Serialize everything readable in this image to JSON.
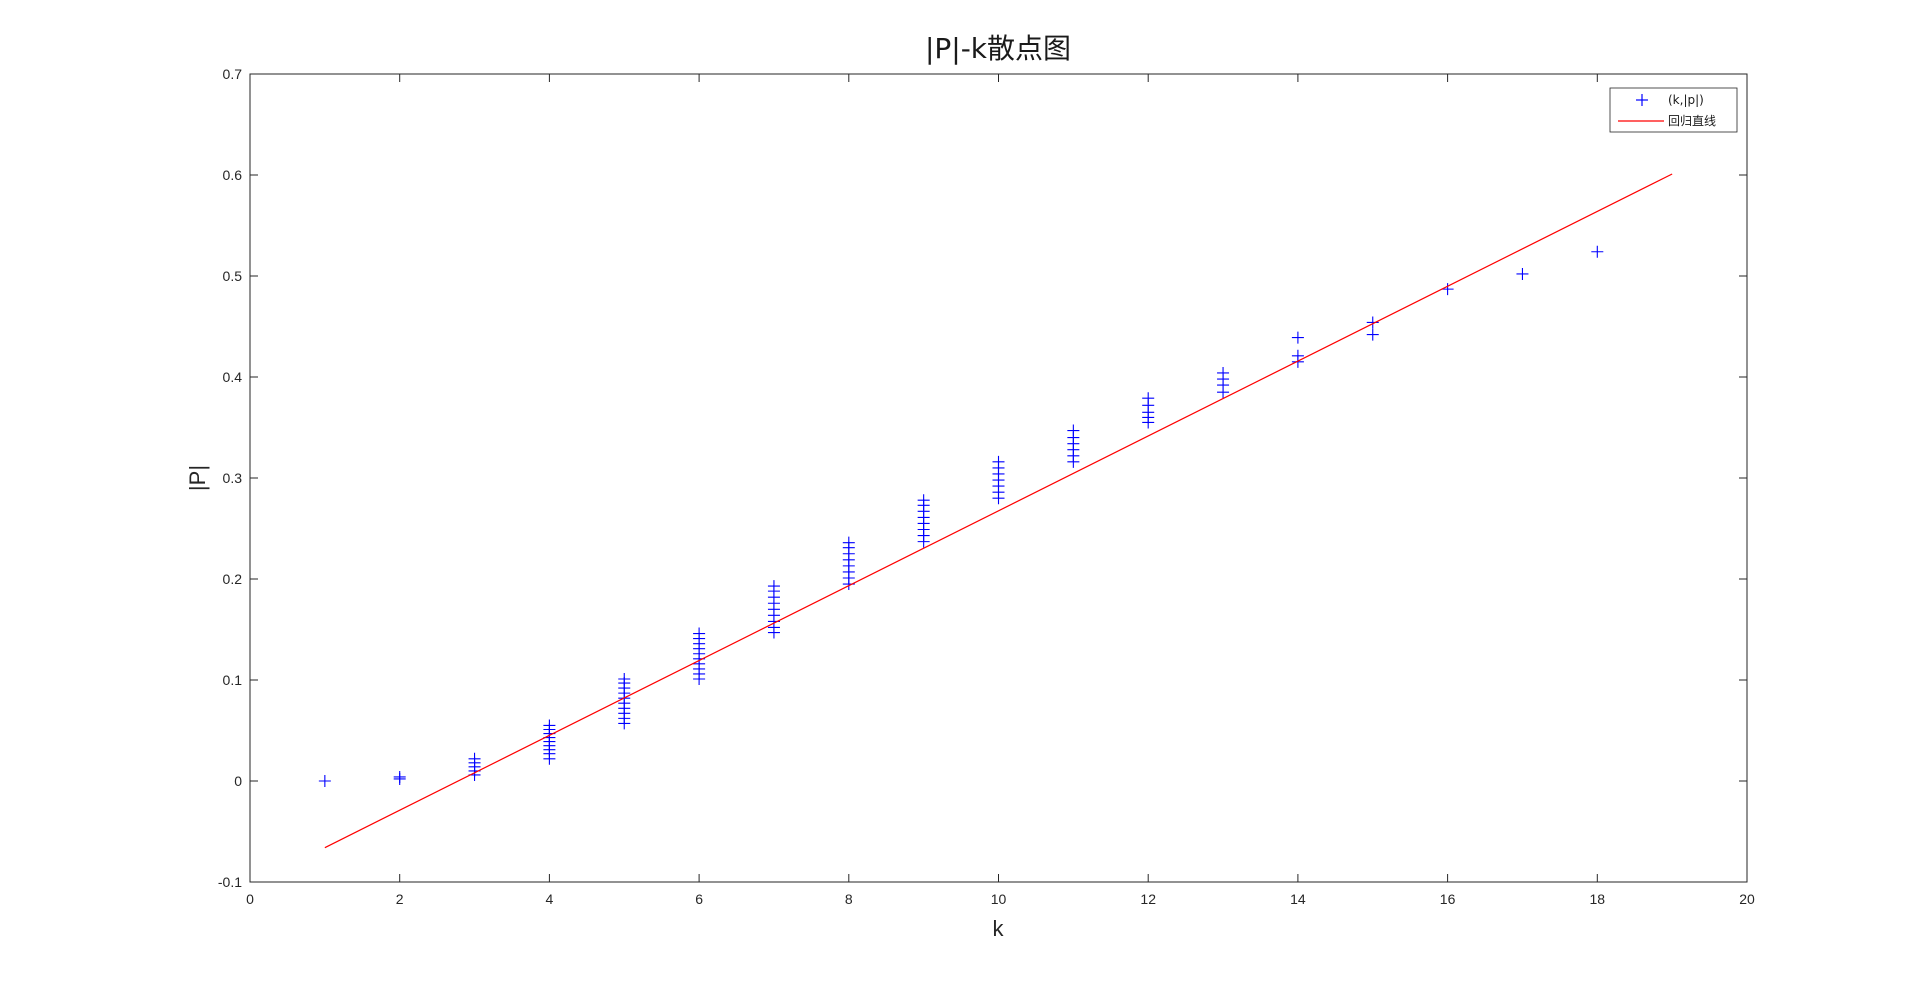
{
  "chart_data": {
    "type": "scatter",
    "title": "|P|-k散点图",
    "xlabel": "k",
    "ylabel": "|P|",
    "xlim": [
      0,
      20
    ],
    "ylim": [
      -0.1,
      0.7
    ],
    "xticks": [
      "0",
      "2",
      "4",
      "6",
      "8",
      "10",
      "12",
      "14",
      "16",
      "18",
      "20"
    ],
    "yticks": [
      "-0.1",
      "0",
      "0.1",
      "0.2",
      "0.3",
      "0.4",
      "0.5",
      "0.6",
      "0.7"
    ],
    "grid": false,
    "legend_position": "top-right",
    "series": [
      {
        "name": "(k,|p|)",
        "type": "scatter",
        "marker": "plus",
        "color": "#0000ff",
        "points": [
          [
            1,
            0.0
          ],
          [
            2,
            0.002
          ],
          [
            2,
            0.004
          ],
          [
            3,
            0.006
          ],
          [
            3,
            0.01
          ],
          [
            3,
            0.014
          ],
          [
            3,
            0.018
          ],
          [
            3,
            0.022
          ],
          [
            4,
            0.022
          ],
          [
            4,
            0.027
          ],
          [
            4,
            0.031
          ],
          [
            4,
            0.035
          ],
          [
            4,
            0.039
          ],
          [
            4,
            0.043
          ],
          [
            4,
            0.047
          ],
          [
            4,
            0.051
          ],
          [
            4,
            0.055
          ],
          [
            5,
            0.057
          ],
          [
            5,
            0.062
          ],
          [
            5,
            0.067
          ],
          [
            5,
            0.072
          ],
          [
            5,
            0.077
          ],
          [
            5,
            0.082
          ],
          [
            5,
            0.087
          ],
          [
            5,
            0.092
          ],
          [
            5,
            0.097
          ],
          [
            5,
            0.101
          ],
          [
            6,
            0.101
          ],
          [
            6,
            0.106
          ],
          [
            6,
            0.111
          ],
          [
            6,
            0.116
          ],
          [
            6,
            0.121
          ],
          [
            6,
            0.126
          ],
          [
            6,
            0.131
          ],
          [
            6,
            0.136
          ],
          [
            6,
            0.141
          ],
          [
            6,
            0.146
          ],
          [
            7,
            0.147
          ],
          [
            7,
            0.152
          ],
          [
            7,
            0.158
          ],
          [
            7,
            0.164
          ],
          [
            7,
            0.17
          ],
          [
            7,
            0.176
          ],
          [
            7,
            0.182
          ],
          [
            7,
            0.188
          ],
          [
            7,
            0.193
          ],
          [
            8,
            0.195
          ],
          [
            8,
            0.201
          ],
          [
            8,
            0.207
          ],
          [
            8,
            0.213
          ],
          [
            8,
            0.219
          ],
          [
            8,
            0.225
          ],
          [
            8,
            0.231
          ],
          [
            8,
            0.236
          ],
          [
            9,
            0.237
          ],
          [
            9,
            0.243
          ],
          [
            9,
            0.249
          ],
          [
            9,
            0.255
          ],
          [
            9,
            0.261
          ],
          [
            9,
            0.267
          ],
          [
            9,
            0.273
          ],
          [
            9,
            0.278
          ],
          [
            10,
            0.28
          ],
          [
            10,
            0.286
          ],
          [
            10,
            0.292
          ],
          [
            10,
            0.298
          ],
          [
            10,
            0.304
          ],
          [
            10,
            0.31
          ],
          [
            10,
            0.316
          ],
          [
            11,
            0.316
          ],
          [
            11,
            0.322
          ],
          [
            11,
            0.328
          ],
          [
            11,
            0.334
          ],
          [
            11,
            0.34
          ],
          [
            11,
            0.347
          ],
          [
            12,
            0.355
          ],
          [
            12,
            0.36
          ],
          [
            12,
            0.365
          ],
          [
            12,
            0.372
          ],
          [
            12,
            0.379
          ],
          [
            13,
            0.385
          ],
          [
            13,
            0.392
          ],
          [
            13,
            0.398
          ],
          [
            13,
            0.404
          ],
          [
            14,
            0.415
          ],
          [
            14,
            0.421
          ],
          [
            14,
            0.439
          ],
          [
            15,
            0.442
          ],
          [
            15,
            0.454
          ],
          [
            16,
            0.487
          ],
          [
            17,
            0.502
          ],
          [
            18,
            0.524
          ]
        ]
      },
      {
        "name": "回归直线",
        "type": "line",
        "color": "#ff0000",
        "points": [
          [
            1,
            -0.066
          ],
          [
            19,
            0.601
          ]
        ]
      }
    ]
  }
}
